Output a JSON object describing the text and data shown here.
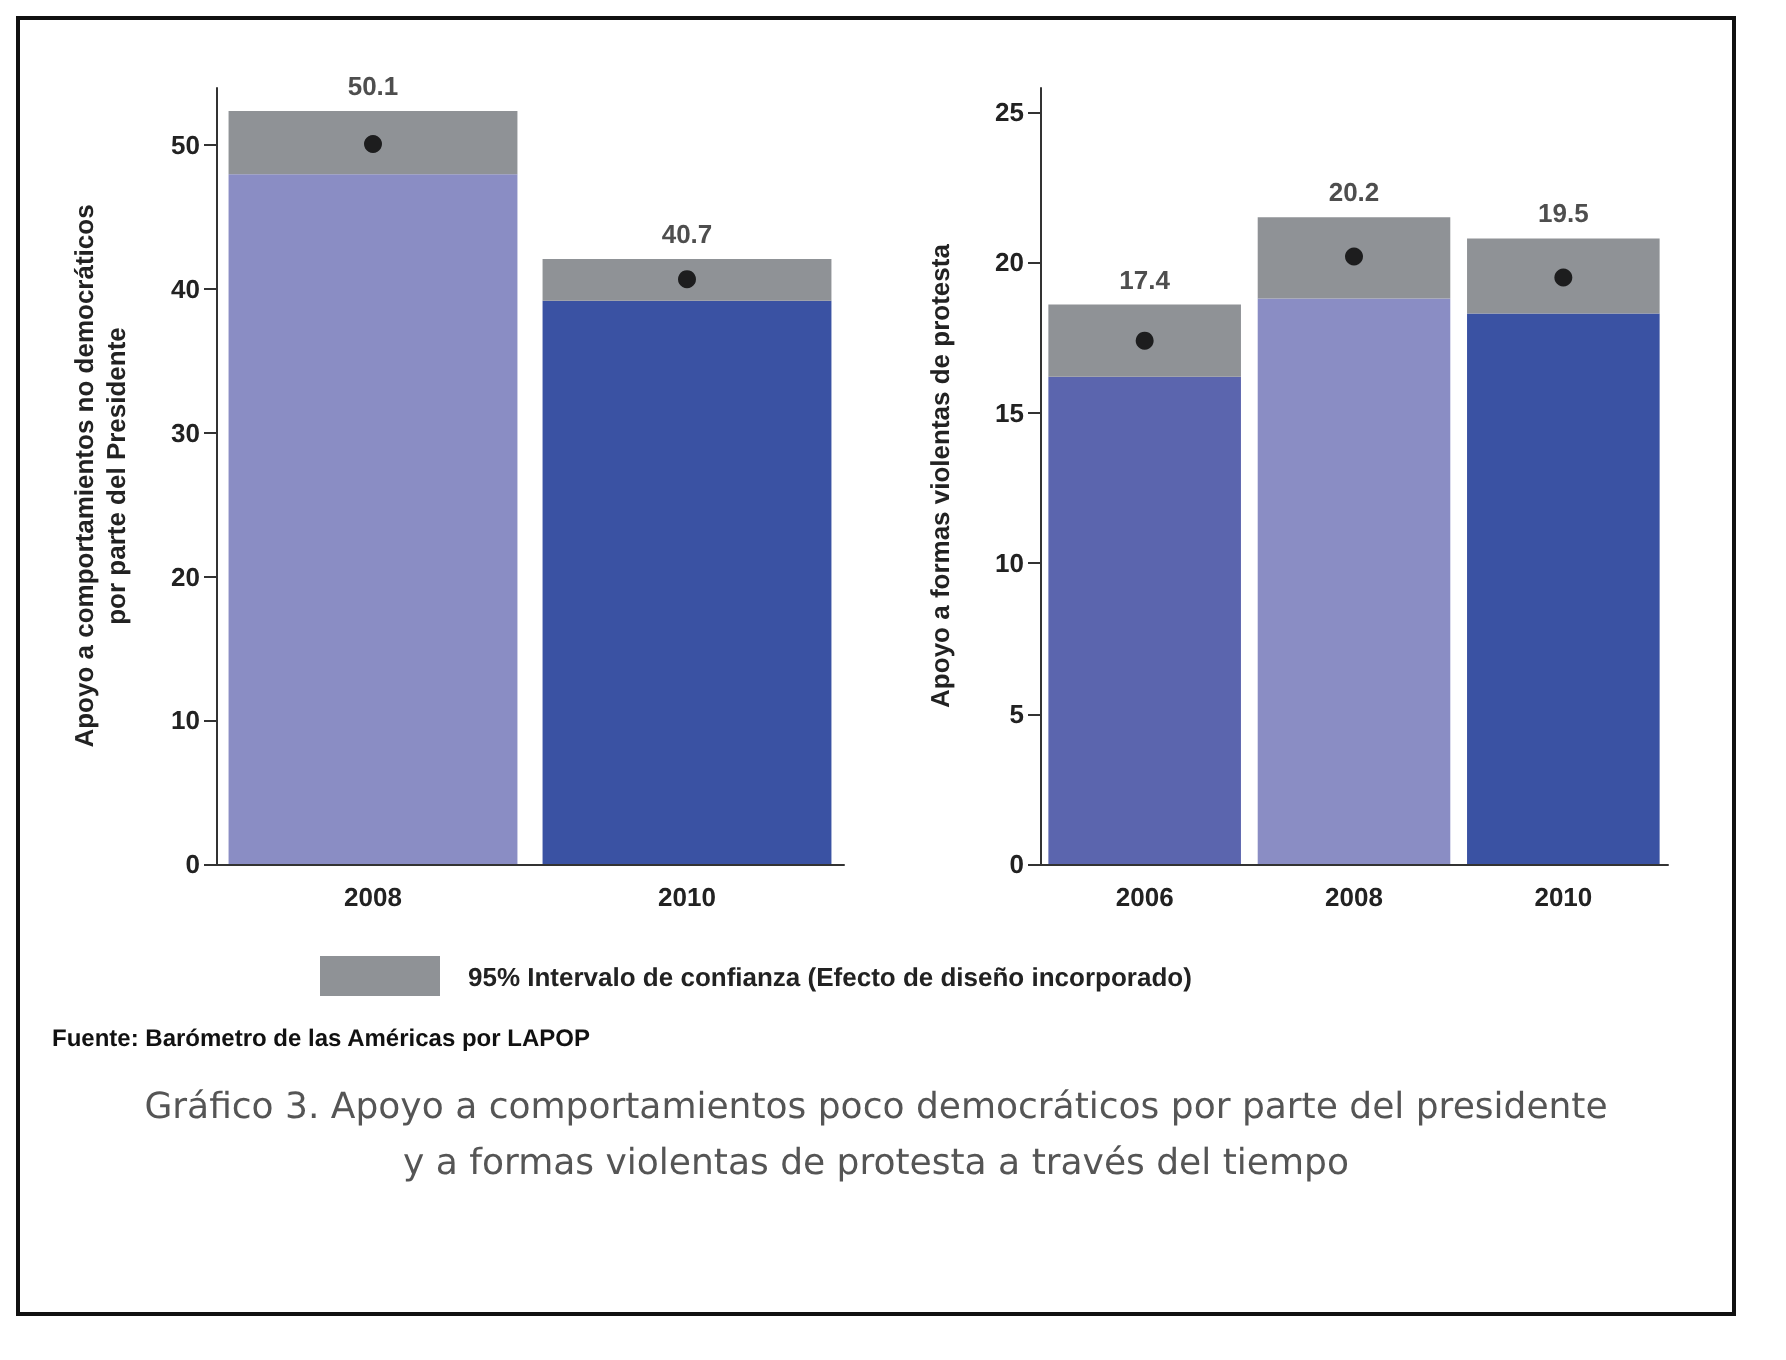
{
  "chart_data": [
    {
      "type": "bar",
      "stacked": true,
      "categories": [
        "2008",
        "2010"
      ],
      "ylabel": "Apoyo a comportamientos no democráticos\npor parte del Presidente",
      "ylim": [
        0,
        54
      ],
      "yticks": [
        0,
        10,
        20,
        30,
        40,
        50
      ],
      "legend": "bottom",
      "annotations": [
        "Fuente: Barómetro de las Américas por LAPOP",
        "Gráfico 3. Apoyo a comportamientos poco democráticos por parte del presidente y a formas violentas de protesta a través del tiempo"
      ],
      "series": [
        {
          "colors": [
            "#8a8dc4",
            "#3a52a3"
          ],
          "values": [
            48.0,
            39.2
          ]
        },
        {
          "name": "95% Intervalo de confianza (Efecto de diseño incorporado)",
          "color": "#8f9296",
          "values": [
            4.4,
            2.9
          ]
        },
        {
          "type": "scatter",
          "color": "#000000",
          "marker": "circle",
          "data_labels": true,
          "values": [
            50.1,
            40.7
          ]
        }
      ]
    },
    {
      "type": "bar",
      "stacked": true,
      "categories": [
        "2006",
        "2008",
        "2010"
      ],
      "ylabel": "Apoyo a formas violentas de protesta",
      "ylim": [
        0,
        25.8
      ],
      "yticks": [
        0,
        5,
        10,
        15,
        20,
        25
      ],
      "series": [
        {
          "colors": [
            "#5b65ae",
            "#8a8dc4",
            "#3a52a3"
          ],
          "values": [
            16.2,
            18.8,
            18.3
          ]
        },
        {
          "color": "#8f9296",
          "values": [
            2.4,
            2.7,
            2.5
          ]
        },
        {
          "type": "scatter",
          "color": "#000000",
          "marker": "circle",
          "data_labels": true,
          "values": [
            17.4,
            20.2,
            19.5
          ]
        }
      ]
    }
  ]
}
